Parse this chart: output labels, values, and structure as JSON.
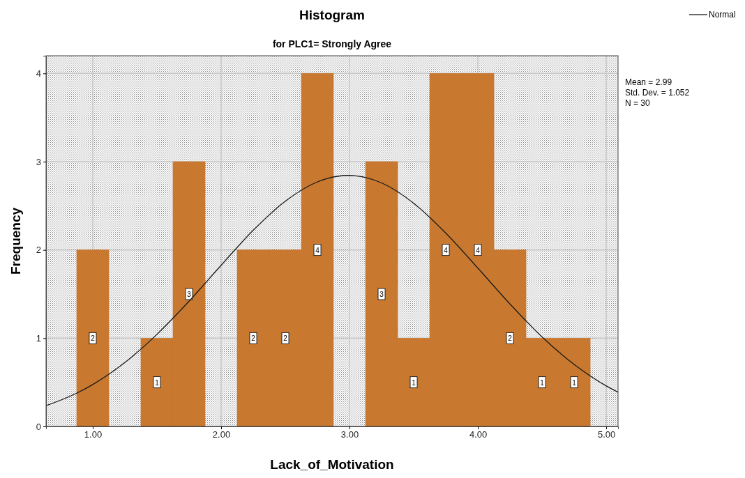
{
  "chart_data": {
    "type": "histogram",
    "title": "Histogram",
    "subtitle": "for PLC1= Strongly Agree",
    "xlabel": "Lack_of_Motivation",
    "ylabel": "Frequency",
    "bins": [
      0.875,
      1.125,
      1.375,
      1.625,
      1.875,
      2.125,
      2.375,
      2.625,
      2.875,
      3.125,
      3.375,
      3.625,
      3.875,
      4.125,
      4.375,
      4.625,
      4.875
    ],
    "values": [
      2,
      0,
      1,
      3,
      0,
      2,
      2,
      4,
      0,
      3,
      1,
      4,
      4,
      2,
      1,
      1
    ],
    "color": "#c8782f",
    "value_labels": [
      "2",
      null,
      "1",
      "3",
      null,
      "2",
      "2",
      "4",
      null,
      "3",
      "1",
      "4",
      "4",
      "2",
      "1",
      "1"
    ],
    "series": [
      {
        "type": "line",
        "name": "Normal",
        "color": "#1a1a1a",
        "x": [
          0.636,
          0.875,
          1.0,
          1.25,
          1.5,
          1.75,
          2.0,
          2.25,
          2.5,
          2.75,
          2.99,
          3.25,
          3.5,
          3.75,
          4.0,
          4.25,
          4.5,
          4.75,
          5.0,
          5.092
        ],
        "values": [
          0.235,
          0.377,
          0.475,
          0.724,
          1.043,
          1.419,
          1.826,
          2.222,
          2.552,
          2.771,
          2.844,
          2.759,
          2.529,
          2.191,
          1.794,
          1.388,
          1.015,
          0.702,
          0.459,
          0.388
        ]
      }
    ],
    "xlim": [
      0.636,
      5.092
    ],
    "ylim": [
      0,
      4.2
    ],
    "xticks": [
      {
        "value": 1,
        "label": "1.00"
      },
      {
        "value": 2,
        "label": "2.00"
      },
      {
        "value": 3,
        "label": "3.00"
      },
      {
        "value": 4,
        "label": "4.00"
      },
      {
        "value": 5,
        "label": "5.00"
      }
    ],
    "yticks": [
      0,
      1,
      2,
      3,
      4
    ],
    "grid": true,
    "legend": "top right",
    "annotations": [
      "Mean = 2.99",
      "Std. Dev. = 1.052",
      "N = 30"
    ]
  }
}
